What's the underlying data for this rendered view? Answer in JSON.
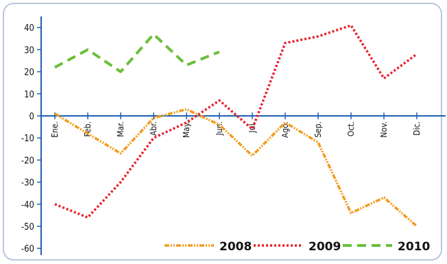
{
  "chart_data": {
    "type": "line",
    "categories": [
      "Ene.",
      "Feb.",
      "Mar.",
      "Abr.",
      "May.",
      "Jun.",
      "Jul.",
      "Ago.",
      "Sep.",
      "Oct.",
      "Nov.",
      "Dic."
    ],
    "series": [
      {
        "name": "2008",
        "color": "#f29b1d",
        "values": [
          1,
          -8,
          -17,
          -1,
          3,
          -4,
          -18,
          -3,
          -12,
          -44,
          -37,
          -50
        ]
      },
      {
        "name": "2009",
        "color": "#e8202a",
        "values": [
          -40,
          -46,
          -30,
          -10,
          -3,
          7,
          -6,
          33,
          36,
          41,
          17,
          28
        ]
      },
      {
        "name": "2010",
        "color": "#6abf3a",
        "values": [
          22,
          30,
          20,
          37,
          23,
          29,
          null,
          null,
          null,
          null,
          null,
          null
        ]
      }
    ],
    "yticks": [
      40,
      30,
      20,
      10,
      0,
      -10,
      -20,
      -30,
      -40,
      -50,
      -60
    ],
    "ylim": [
      -63,
      43
    ],
    "grid": false,
    "legend_position": "bottom-right",
    "axis_color": "#1f5fb0"
  }
}
